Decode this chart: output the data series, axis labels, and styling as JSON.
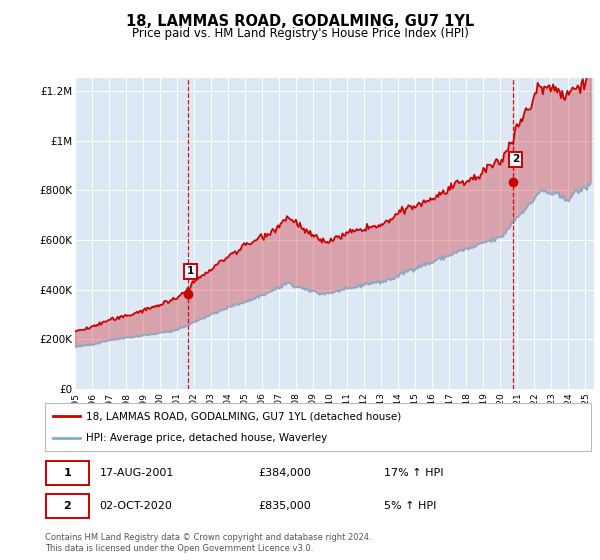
{
  "title": "18, LAMMAS ROAD, GODALMING, GU7 1YL",
  "subtitle": "Price paid vs. HM Land Registry's House Price Index (HPI)",
  "background_color": "#dce9f5",
  "plot_bg_color": "#dce9f5",
  "grid_color": "#ffffff",
  "hpi_line_color": "#7ab0d4",
  "price_line_color": "#cc0000",
  "fill_color_above": "#cc0000",
  "fill_color_below": "#7ab0d4",
  "sale1_date_num": 2001.63,
  "sale1_price": 384000,
  "sale2_date_num": 2020.75,
  "sale2_price": 835000,
  "xmin": 1995,
  "xmax": 2025.5,
  "ymin": 0,
  "ymax": 1250000,
  "yticks": [
    0,
    200000,
    400000,
    600000,
    800000,
    1000000,
    1200000
  ],
  "ytick_labels": [
    "£0",
    "£200K",
    "£400K",
    "£600K",
    "£800K",
    "£1M",
    "£1.2M"
  ],
  "xticks": [
    1995,
    1996,
    1997,
    1998,
    1999,
    2000,
    2001,
    2002,
    2003,
    2004,
    2005,
    2006,
    2007,
    2008,
    2009,
    2010,
    2011,
    2012,
    2013,
    2014,
    2015,
    2016,
    2017,
    2018,
    2019,
    2020,
    2021,
    2022,
    2023,
    2024,
    2025
  ],
  "legend_price_label": "18, LAMMAS ROAD, GODALMING, GU7 1YL (detached house)",
  "legend_hpi_label": "HPI: Average price, detached house, Waverley",
  "footer": "Contains HM Land Registry data © Crown copyright and database right 2024.\nThis data is licensed under the Open Government Licence v3.0."
}
